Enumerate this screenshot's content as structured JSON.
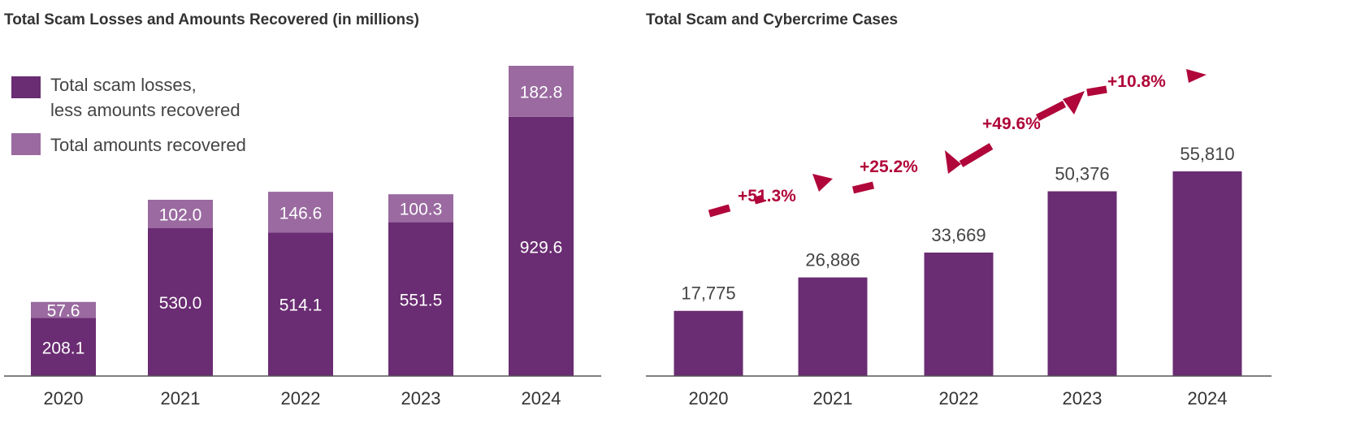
{
  "colors": {
    "losses": "#6a2c72",
    "recovered": "#9a6aa0",
    "growth": "#b0063a",
    "axis": "#555555"
  },
  "chart_data": [
    {
      "type": "bar",
      "stacked": true,
      "title": "Total Scam Losses and Amounts Recovered (in millions)",
      "categories": [
        "2020",
        "2021",
        "2022",
        "2023",
        "2024"
      ],
      "series": [
        {
          "name": "Total scam losses, less amounts recovered",
          "legend_lines": [
            "Total scam losses,",
            "less amounts recovered"
          ],
          "values": [
            208.1,
            530.0,
            514.1,
            551.5,
            929.6
          ],
          "labels": [
            "208.1",
            "530.0",
            "514.1",
            "551.5",
            "929.6"
          ]
        },
        {
          "name": "Total amounts recovered",
          "legend_lines": [
            "Total amounts recovered"
          ],
          "values": [
            57.6,
            102.0,
            146.6,
            100.3,
            182.8
          ],
          "labels": [
            "57.6",
            "102.0",
            "146.6",
            "100.3",
            "182.8"
          ]
        }
      ],
      "legend": "top-left",
      "ylim": [
        0,
        1112.4
      ]
    },
    {
      "type": "bar",
      "title": "Total Scam and Cybercrime Cases",
      "categories": [
        "2020",
        "2021",
        "2022",
        "2023",
        "2024"
      ],
      "values": [
        17775,
        26886,
        33669,
        50376,
        55810
      ],
      "labels": [
        "17,775",
        "26,886",
        "33,669",
        "50,376",
        "55,810"
      ],
      "growth_annotations": [
        "+51.3%",
        "+25.2%",
        "+49.6%",
        "+10.8%"
      ],
      "ylim": [
        0,
        55810
      ]
    }
  ]
}
